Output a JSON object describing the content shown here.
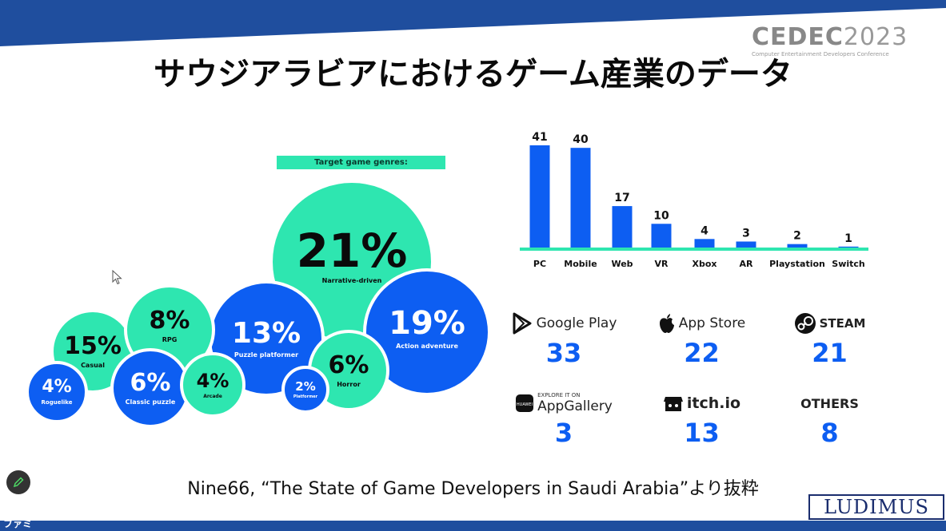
{
  "slide": {
    "title": "サウジアラビアにおけるゲーム産業のデータ",
    "logo": {
      "main": "CEDEC",
      "year": "2023",
      "subtitle": "Computer Entertainment Developers Conference"
    },
    "source": "Nine66, “The State of Game Developers in Saudi Arabia”より抜粋",
    "publisher_logo": "LUDIMUS",
    "watermark": "ファミ通.com"
  },
  "genres": {
    "header": "Target game genres:",
    "items": [
      {
        "pct": "21%",
        "label": "Narrative-driven",
        "color": "green"
      },
      {
        "pct": "19%",
        "label": "Action adventure",
        "color": "blue"
      },
      {
        "pct": "15%",
        "label": "Casual",
        "color": "green"
      },
      {
        "pct": "13%",
        "label": "Puzzle platformer",
        "color": "blue"
      },
      {
        "pct": "8%",
        "label": "RPG",
        "color": "green"
      },
      {
        "pct": "6%",
        "label": "Classic puzzle",
        "color": "blue"
      },
      {
        "pct": "6%",
        "label": "Horror",
        "color": "green"
      },
      {
        "pct": "4%",
        "label": "Roguelike",
        "color": "blue"
      },
      {
        "pct": "4%",
        "label": "Arcade",
        "color": "green"
      },
      {
        "pct": "2%",
        "label": "Platformer",
        "color": "blue"
      }
    ]
  },
  "chart_data": {
    "type": "bar",
    "categories": [
      "PC",
      "Mobile",
      "Web",
      "VR",
      "Xbox",
      "AR",
      "Playstation",
      "Switch"
    ],
    "values": [
      41,
      40,
      17,
      10,
      4,
      3,
      2,
      1
    ],
    "title": "",
    "xlabel": "",
    "ylabel": "",
    "bar_color": "#0d5ef2",
    "baseline_color": "#2ee6b0"
  },
  "stores": [
    {
      "name": "Google Play",
      "count": "33",
      "icon": "google-play-icon"
    },
    {
      "name": "App Store",
      "count": "22",
      "icon": "apple-icon"
    },
    {
      "name": "STEAM",
      "count": "21",
      "icon": "steam-icon"
    },
    {
      "name": "AppGallery",
      "prefix": "EXPLORE IT ON",
      "count": "3",
      "icon": "huawei-icon"
    },
    {
      "name": "itch.io",
      "count": "13",
      "icon": "itch-icon"
    },
    {
      "name": "OTHERS",
      "count": "8",
      "icon": ""
    }
  ],
  "colors": {
    "green": "#2ee6b0",
    "blue": "#0d5ef2",
    "band": "#1f4e9e"
  }
}
